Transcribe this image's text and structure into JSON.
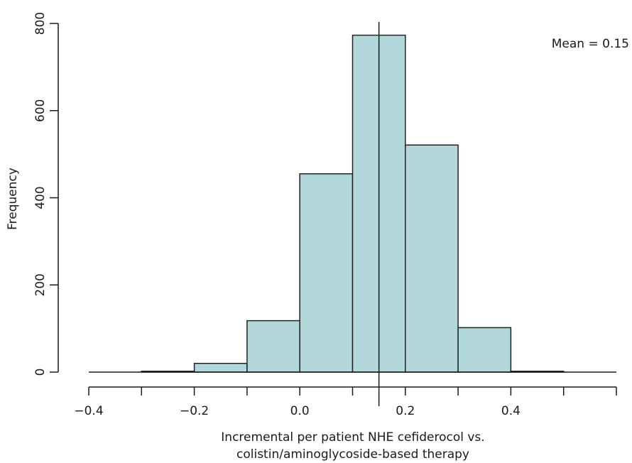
{
  "chart_data": {
    "type": "bar",
    "subtype": "histogram",
    "bin_edges": [
      -0.3,
      -0.2,
      -0.1,
      0.0,
      0.1,
      0.2,
      0.3,
      0.4,
      0.5
    ],
    "values": [
      2,
      20,
      118,
      455,
      773,
      521,
      102,
      2
    ],
    "xlabel_lines": [
      "Incremental per patient NHE cefiderocol vs.",
      "colistin/aminoglycoside-based therapy"
    ],
    "ylabel": "Frequency",
    "xlim": [
      -0.4,
      0.6
    ],
    "ylim": [
      0,
      800
    ],
    "x_ticks": [
      -0.4,
      -0.2,
      0.0,
      0.2,
      0.4
    ],
    "x_tick_labels": [
      "−0.4",
      "−0.2",
      "0.0",
      "0.2",
      "0.4"
    ],
    "y_ticks": [
      0,
      200,
      400,
      600,
      800
    ],
    "y_tick_labels": [
      "0",
      "200",
      "400",
      "600",
      "800"
    ],
    "mean_value": 0.15,
    "mean_label": "Mean = 0.15",
    "grid": false,
    "colors": {
      "bar_fill": "#b3d8db",
      "bar_stroke": "#222222",
      "line": "#1a1a1a"
    }
  }
}
